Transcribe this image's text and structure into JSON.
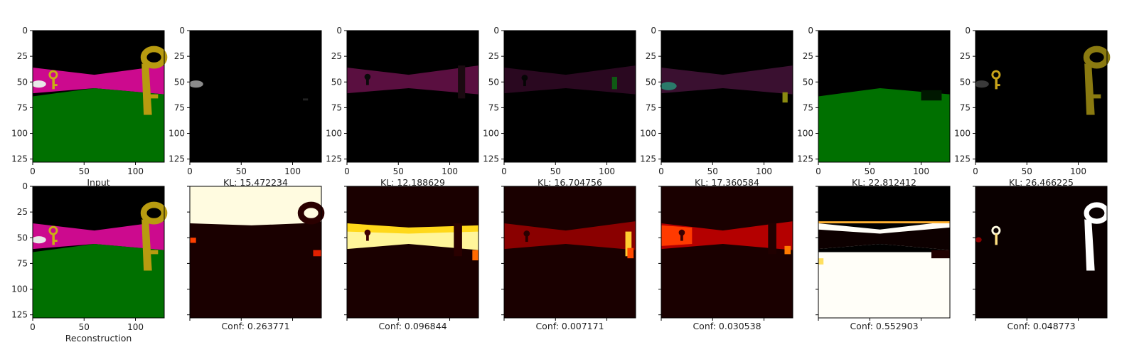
{
  "chart_data": {
    "type": "image-grid",
    "rows": 2,
    "cols": 7,
    "image_size": 128,
    "axis_range": [
      0,
      128
    ],
    "x_ticks": [
      0,
      50,
      100
    ],
    "y_ticks": [
      0,
      25,
      50,
      75,
      100,
      125
    ],
    "top_row": [
      {
        "label": "Input",
        "kind": "rgb"
      },
      {
        "label": "KL: 15.472234",
        "kind": "rgb"
      },
      {
        "label": "KL: 12.188629",
        "kind": "rgb"
      },
      {
        "label": "KL: 16.704756",
        "kind": "rgb"
      },
      {
        "label": "KL: 17.360584",
        "kind": "rgb"
      },
      {
        "label": "KL: 22.812412",
        "kind": "rgb"
      },
      {
        "label": "KL: 26.466225",
        "kind": "rgb"
      }
    ],
    "bottom_row": [
      {
        "label": "Reconstruction",
        "kind": "rgb"
      },
      {
        "label": "Conf: 0.263771",
        "kind": "heatmap"
      },
      {
        "label": "Conf: 0.096844",
        "kind": "heatmap"
      },
      {
        "label": "Conf: 0.007171",
        "kind": "heatmap"
      },
      {
        "label": "Conf: 0.030538",
        "kind": "heatmap"
      },
      {
        "label": "Conf: 0.552903",
        "kind": "heatmap"
      },
      {
        "label": "Conf: 0.048773",
        "kind": "heatmap"
      }
    ]
  }
}
